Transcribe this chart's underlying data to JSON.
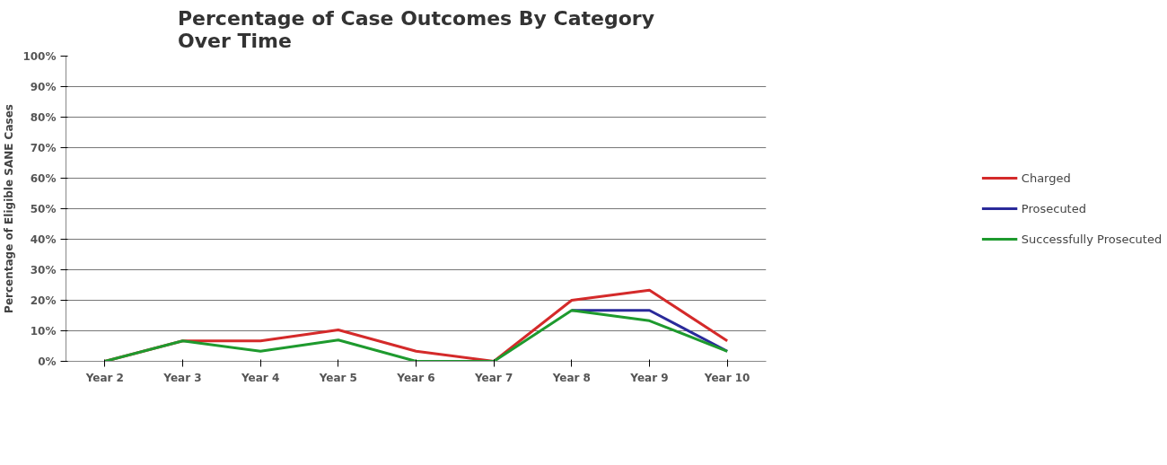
{
  "chart_data": {
    "type": "line",
    "title": "Percentage of Case Outcomes By Category\nOver Time",
    "ylabel": "Percentage of Eligible SANE Cases",
    "categories": [
      "Year 2",
      "Year 3",
      "Year 4",
      "Year 5",
      "Year 6",
      "Year 7",
      "Year 8",
      "Year 9",
      "Year 10"
    ],
    "series": [
      {
        "name": "Charged",
        "color": "#d42a2a",
        "values": [
          0,
          6.7,
          6.7,
          10.3,
          3.3,
          0,
          20,
          23.3,
          6.7
        ]
      },
      {
        "name": "Prosecuted",
        "color": "#2a2a9a",
        "values": [
          null,
          null,
          null,
          null,
          null,
          null,
          16.7,
          16.7,
          3.3
        ]
      },
      {
        "name": "Successfully Prosecuted",
        "color": "#1e9a2e",
        "values": [
          0,
          6.7,
          3.3,
          7,
          0,
          0,
          16.7,
          13.3,
          3.3
        ]
      }
    ],
    "ylim": [
      0,
      100
    ],
    "yticks": [
      {
        "value": 0,
        "label": "0%"
      },
      {
        "value": 10,
        "label": "10%"
      },
      {
        "value": 20,
        "label": "20%"
      },
      {
        "value": 30,
        "label": "30%"
      },
      {
        "value": 40,
        "label": "40%"
      },
      {
        "value": 50,
        "label": "50%"
      },
      {
        "value": 60,
        "label": "60%"
      },
      {
        "value": 70,
        "label": "70%"
      },
      {
        "value": 80,
        "label": "80%"
      },
      {
        "value": 90,
        "label": "90%"
      },
      {
        "value": 100,
        "label": "100%"
      }
    ],
    "grid": "y",
    "legend": "right",
    "marker": "none",
    "line_style": "solid"
  }
}
